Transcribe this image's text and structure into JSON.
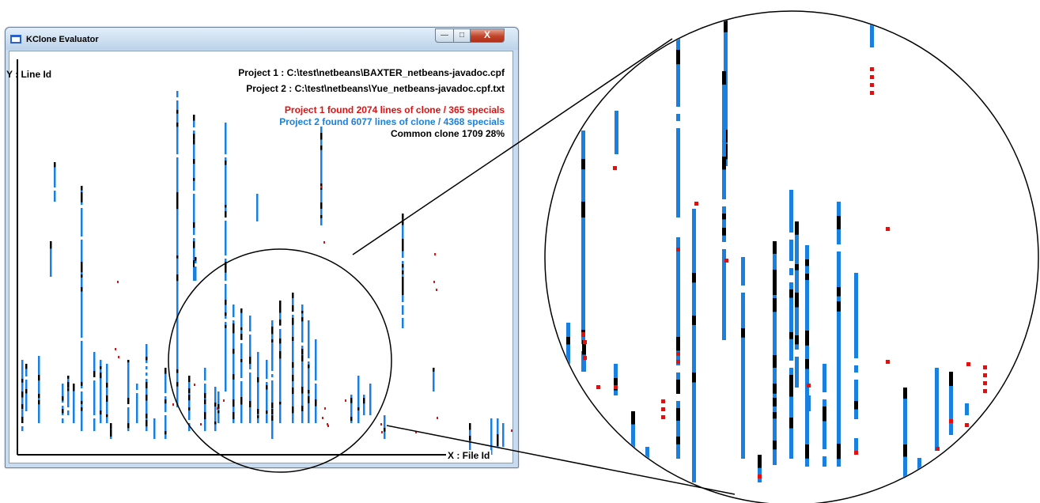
{
  "window": {
    "title": "KClone Evaluator",
    "controls": {
      "minimize": "—",
      "maximize": "□",
      "close": "X"
    }
  },
  "axes": {
    "y_label": "Y : Line Id",
    "x_label": "X : File Id"
  },
  "info": {
    "project1_path": "Project 1 : C:\\test\\netbeans\\BAXTER_netbeans-javadoc.cpf",
    "project2_path": "Project 2 : C:\\test\\netbeans\\Yue_netbeans-javadoc.cpf.txt",
    "project1_stats": "Project 1 found 2074 lines of clone / 365 specials",
    "project2_stats": "Project 2 found 6077 lines of clone / 4368 specials",
    "common": "Common clone 1709 28%"
  },
  "colors": {
    "project1": "#e01010",
    "project2": "#1a80e0",
    "common": "#000000"
  }
}
